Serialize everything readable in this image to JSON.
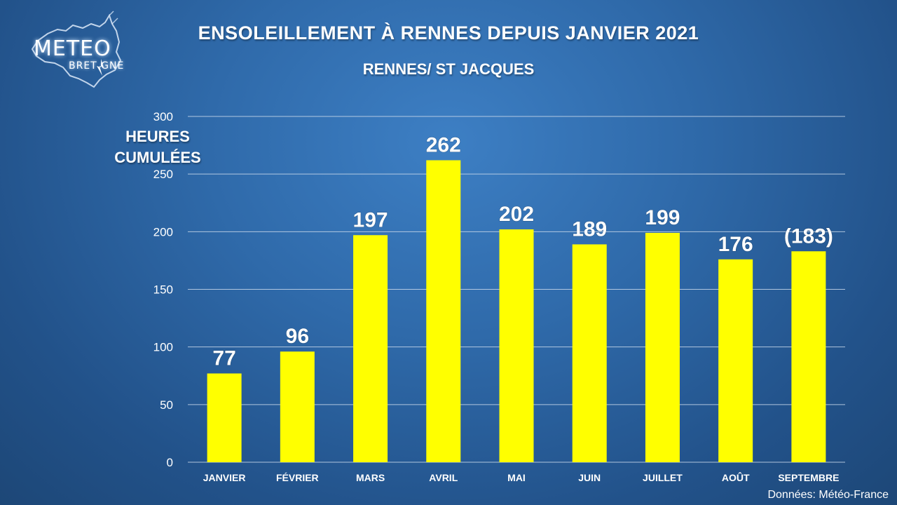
{
  "title": "ENSOLEILLEMENT À RENNES DEPUIS JANVIER 2021",
  "subtitle": "RENNES/ ST JACQUES",
  "logo": {
    "line1": "METEO",
    "line2": "BRET  GNE"
  },
  "source": "Données: Météo-France",
  "colors": {
    "bar": "#ffff00",
    "grid": "#c9d8ea",
    "text": "#ffffff"
  },
  "chart_data": {
    "type": "bar",
    "ylabel_line1": "HEURES",
    "ylabel_line2": "CUMULÉES",
    "categories": [
      "JANVIER",
      "FÉVRIER",
      "MARS",
      "AVRIL",
      "MAI",
      "JUIN",
      "JUILLET",
      "AOÛT",
      "SEPTEMBRE"
    ],
    "values": [
      77,
      96,
      197,
      262,
      202,
      189,
      199,
      176,
      183
    ],
    "data_labels": [
      "77",
      "96",
      "197",
      "262",
      "202",
      "189",
      "199",
      "176",
      "(183)"
    ],
    "ylim": [
      0,
      300
    ],
    "yticks": [
      "0",
      "50",
      "100",
      "150",
      "200",
      "250",
      "300"
    ],
    "grid": true,
    "legend": "none"
  }
}
